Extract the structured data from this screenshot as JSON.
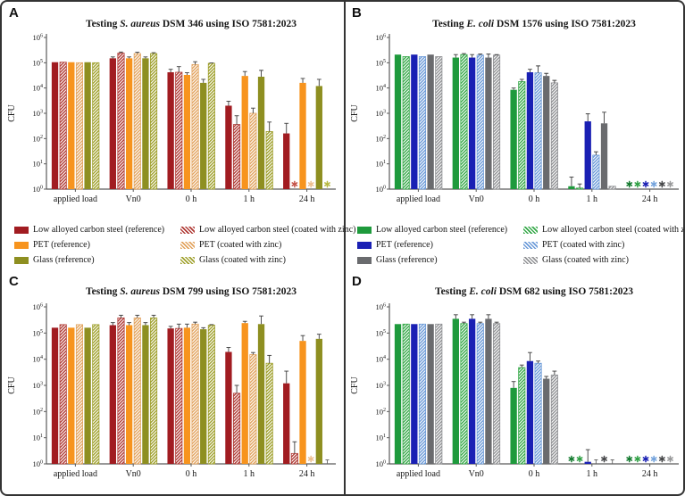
{
  "figure": {
    "panel_labels": [
      "A",
      "B",
      "C",
      "D"
    ],
    "y_axis_label": "CFU",
    "y_tick_exponents": [
      0,
      1,
      2,
      3,
      4,
      5,
      6
    ],
    "x_categories": [
      "applied load",
      "Vn0",
      "0 h",
      "1 h",
      "24 h"
    ],
    "border_color": "#333333"
  },
  "chart_data": [
    {
      "type": "bar",
      "panel": "A",
      "title_prefix": "Testing ",
      "title_italic": "S. aureus",
      "title_suffix": " DSM 346 using ISO 7581:2023",
      "ylabel": "CFU",
      "yscale": "log",
      "ylim_exponents": [
        0,
        6
      ],
      "categories": [
        "applied load",
        "Vn0",
        "0 h",
        "1 h",
        "24 h"
      ],
      "series": [
        {
          "name": "Low alloyed carbon steel (reference)",
          "color": "#A11C21",
          "hatch": false,
          "marker_color": "#A11C21",
          "values": [
            105000,
            150000,
            42000,
            2000,
            160
          ],
          "err_hi": [
            null,
            170000,
            55000,
            3000,
            400
          ]
        },
        {
          "name": "Low alloyed carbon steel (coated with zinc)",
          "color": "#B03B36",
          "hatch": true,
          "marker_color": "#C4544A",
          "values": [
            105000,
            240000,
            42000,
            360,
            "*"
          ],
          "err_hi": [
            null,
            265000,
            70000,
            800,
            null
          ]
        },
        {
          "name": "PET (reference)",
          "color": "#F7941E",
          "hatch": false,
          "marker_color": "#F7941E",
          "values": [
            105000,
            150000,
            33000,
            30000,
            16000
          ],
          "err_hi": [
            null,
            170000,
            40000,
            45000,
            24000
          ]
        },
        {
          "name": "PET (coated with zinc)",
          "color": "#E2A35E",
          "hatch": true,
          "marker_color": "#EDBE8F",
          "values": [
            100000,
            230000,
            85000,
            1000,
            "*"
          ],
          "err_hi": [
            null,
            260000,
            110000,
            1600,
            null
          ]
        },
        {
          "name": "Glass (reference)",
          "color": "#8E8F21",
          "hatch": false,
          "marker_color": "#8E8F21",
          "values": [
            105000,
            150000,
            16000,
            28000,
            12000
          ],
          "err_hi": [
            null,
            170000,
            22000,
            50000,
            22000
          ]
        },
        {
          "name": "Glass (coated with zinc)",
          "color": "#9FA02C",
          "hatch": true,
          "marker_color": "#B8B944",
          "values": [
            100000,
            230000,
            95000,
            190,
            "*"
          ],
          "err_hi": [
            null,
            250000,
            98000,
            450,
            null
          ]
        }
      ]
    },
    {
      "type": "bar",
      "panel": "B",
      "title_prefix": "Testing ",
      "title_italic": "E. coli",
      "title_suffix": " DSM 1576 using ISO 7581:2023",
      "ylabel": "CFU",
      "yscale": "log",
      "ylim_exponents": [
        0,
        6
      ],
      "categories": [
        "applied load",
        "Vn0",
        "0 h",
        "1 h",
        "24 h"
      ],
      "series": [
        {
          "name": "Low alloyed carbon steel (reference)",
          "color": "#1E9A3C",
          "hatch": false,
          "marker_color": "#157B30",
          "values": [
            210000,
            160000,
            8500,
            1.3,
            "*"
          ],
          "err_hi": [
            null,
            210000,
            10000,
            3,
            null
          ]
        },
        {
          "name": "Low alloyed carbon steel (coated with zinc)",
          "color": "#37A94A",
          "hatch": true,
          "marker_color": "#2FA044",
          "values": [
            175000,
            210000,
            18000,
            1.1,
            "*"
          ],
          "err_hi": [
            null,
            230000,
            22000,
            1.6,
            null
          ]
        },
        {
          "name": "PET (reference)",
          "color": "#1A20B4",
          "hatch": false,
          "marker_color": "#1A20B4",
          "values": [
            210000,
            160000,
            42000,
            480,
            "*"
          ],
          "err_hi": [
            null,
            210000,
            55000,
            950,
            null
          ]
        },
        {
          "name": "PET (coated with zinc)",
          "color": "#6B9AD8",
          "hatch": true,
          "marker_color": "#74A3DC",
          "values": [
            175000,
            200000,
            40000,
            22,
            "*"
          ],
          "err_hi": [
            null,
            220000,
            75000,
            30,
            null
          ]
        },
        {
          "name": "Glass (reference)",
          "color": "#6A6B6E",
          "hatch": false,
          "marker_color": "#48494B",
          "values": [
            210000,
            160000,
            30000,
            400,
            "*"
          ],
          "err_hi": [
            null,
            220000,
            38000,
            1100,
            null
          ]
        },
        {
          "name": "Glass (coated with zinc)",
          "color": "#909194",
          "hatch": true,
          "marker_color": "#98999A",
          "values": [
            175000,
            200000,
            16000,
            1.3,
            "*"
          ],
          "err_hi": [
            null,
            210000,
            20000,
            null,
            null
          ]
        }
      ]
    },
    {
      "type": "bar",
      "panel": "C",
      "title_prefix": "Testing ",
      "title_italic": "S. aureus",
      "title_suffix": " DSM 799 using ISO 7581:2023",
      "ylabel": "CFU",
      "yscale": "log",
      "ylim_exponents": [
        0,
        6
      ],
      "categories": [
        "applied load",
        "Vn0",
        "0 h",
        "1 h",
        "24 h"
      ],
      "series": [
        {
          "name": "Low alloyed carbon steel (reference)",
          "color": "#A11C21",
          "hatch": false,
          "marker_color": "#A11C21",
          "values": [
            160000,
            200000,
            150000,
            19000,
            1200
          ],
          "err_hi": [
            null,
            250000,
            180000,
            28000,
            3500
          ]
        },
        {
          "name": "Low alloyed carbon steel (coated with zinc)",
          "color": "#B03B36",
          "hatch": true,
          "marker_color": "#C4544A",
          "values": [
            210000,
            380000,
            150000,
            500,
            2.5
          ],
          "err_hi": [
            null,
            480000,
            220000,
            1000,
            7
          ]
        },
        {
          "name": "PET (reference)",
          "color": "#F7941E",
          "hatch": false,
          "marker_color": "#F7941E",
          "values": [
            160000,
            200000,
            160000,
            240000,
            50000
          ],
          "err_hi": [
            null,
            250000,
            220000,
            280000,
            80000
          ]
        },
        {
          "name": "PET (coated with zinc)",
          "color": "#E2A35E",
          "hatch": true,
          "marker_color": "#EDBE8F",
          "values": [
            210000,
            380000,
            220000,
            15000,
            "*"
          ],
          "err_hi": [
            null,
            480000,
            260000,
            18000,
            null
          ]
        },
        {
          "name": "Glass (reference)",
          "color": "#8E8F21",
          "hatch": false,
          "marker_color": "#8E8F21",
          "values": [
            160000,
            200000,
            140000,
            220000,
            60000
          ],
          "err_hi": [
            null,
            250000,
            160000,
            450000,
            90000
          ]
        },
        {
          "name": "Glass (coated with zinc)",
          "color": "#9FA02C",
          "hatch": true,
          "marker_color": "#B8B944",
          "values": [
            210000,
            380000,
            200000,
            7000,
            "T"
          ],
          "err_hi": [
            null,
            480000,
            210000,
            14000,
            null
          ]
        }
      ]
    },
    {
      "type": "bar",
      "panel": "D",
      "title_prefix": "Testing ",
      "title_italic": "E. coli",
      "title_suffix": " DSM 682 using ISO 7581:2023",
      "ylabel": "CFU",
      "yscale": "log",
      "ylim_exponents": [
        0,
        6
      ],
      "categories": [
        "applied load",
        "Vn0",
        "0 h",
        "1 h",
        "24 h"
      ],
      "series": [
        {
          "name": "Low alloyed carbon steel (reference)",
          "color": "#1E9A3C",
          "hatch": false,
          "marker_color": "#157B30",
          "values": [
            220000,
            350000,
            800,
            "*",
            "*"
          ],
          "err_hi": [
            null,
            500000,
            1400,
            null,
            null
          ]
        },
        {
          "name": "Low alloyed carbon steel (coated with zinc)",
          "color": "#37A94A",
          "hatch": true,
          "marker_color": "#2FA044",
          "values": [
            220000,
            230000,
            4800,
            "*",
            "*"
          ],
          "err_hi": [
            null,
            260000,
            6000,
            null,
            null
          ]
        },
        {
          "name": "PET (reference)",
          "color": "#1A20B4",
          "hatch": false,
          "marker_color": "#1A20B4",
          "values": [
            220000,
            350000,
            8500,
            1.2,
            "*"
          ],
          "err_hi": [
            null,
            500000,
            18000,
            3.5,
            null
          ]
        },
        {
          "name": "PET (coated with zinc)",
          "color": "#6B9AD8",
          "hatch": true,
          "marker_color": "#74A3DC",
          "values": [
            220000,
            230000,
            7000,
            "T",
            "*"
          ],
          "err_hi": [
            null,
            260000,
            8500,
            null,
            null
          ]
        },
        {
          "name": "Glass (reference)",
          "color": "#6A6B6E",
          "hatch": false,
          "marker_color": "#48494B",
          "values": [
            220000,
            350000,
            1800,
            "*",
            "*"
          ],
          "err_hi": [
            null,
            500000,
            2200,
            null,
            null
          ]
        },
        {
          "name": "Glass (coated with zinc)",
          "color": "#909194",
          "hatch": true,
          "marker_color": "#98999A",
          "values": [
            220000,
            230000,
            2500,
            "T",
            "*"
          ],
          "err_hi": [
            null,
            260000,
            3500,
            null,
            null
          ]
        }
      ]
    }
  ]
}
